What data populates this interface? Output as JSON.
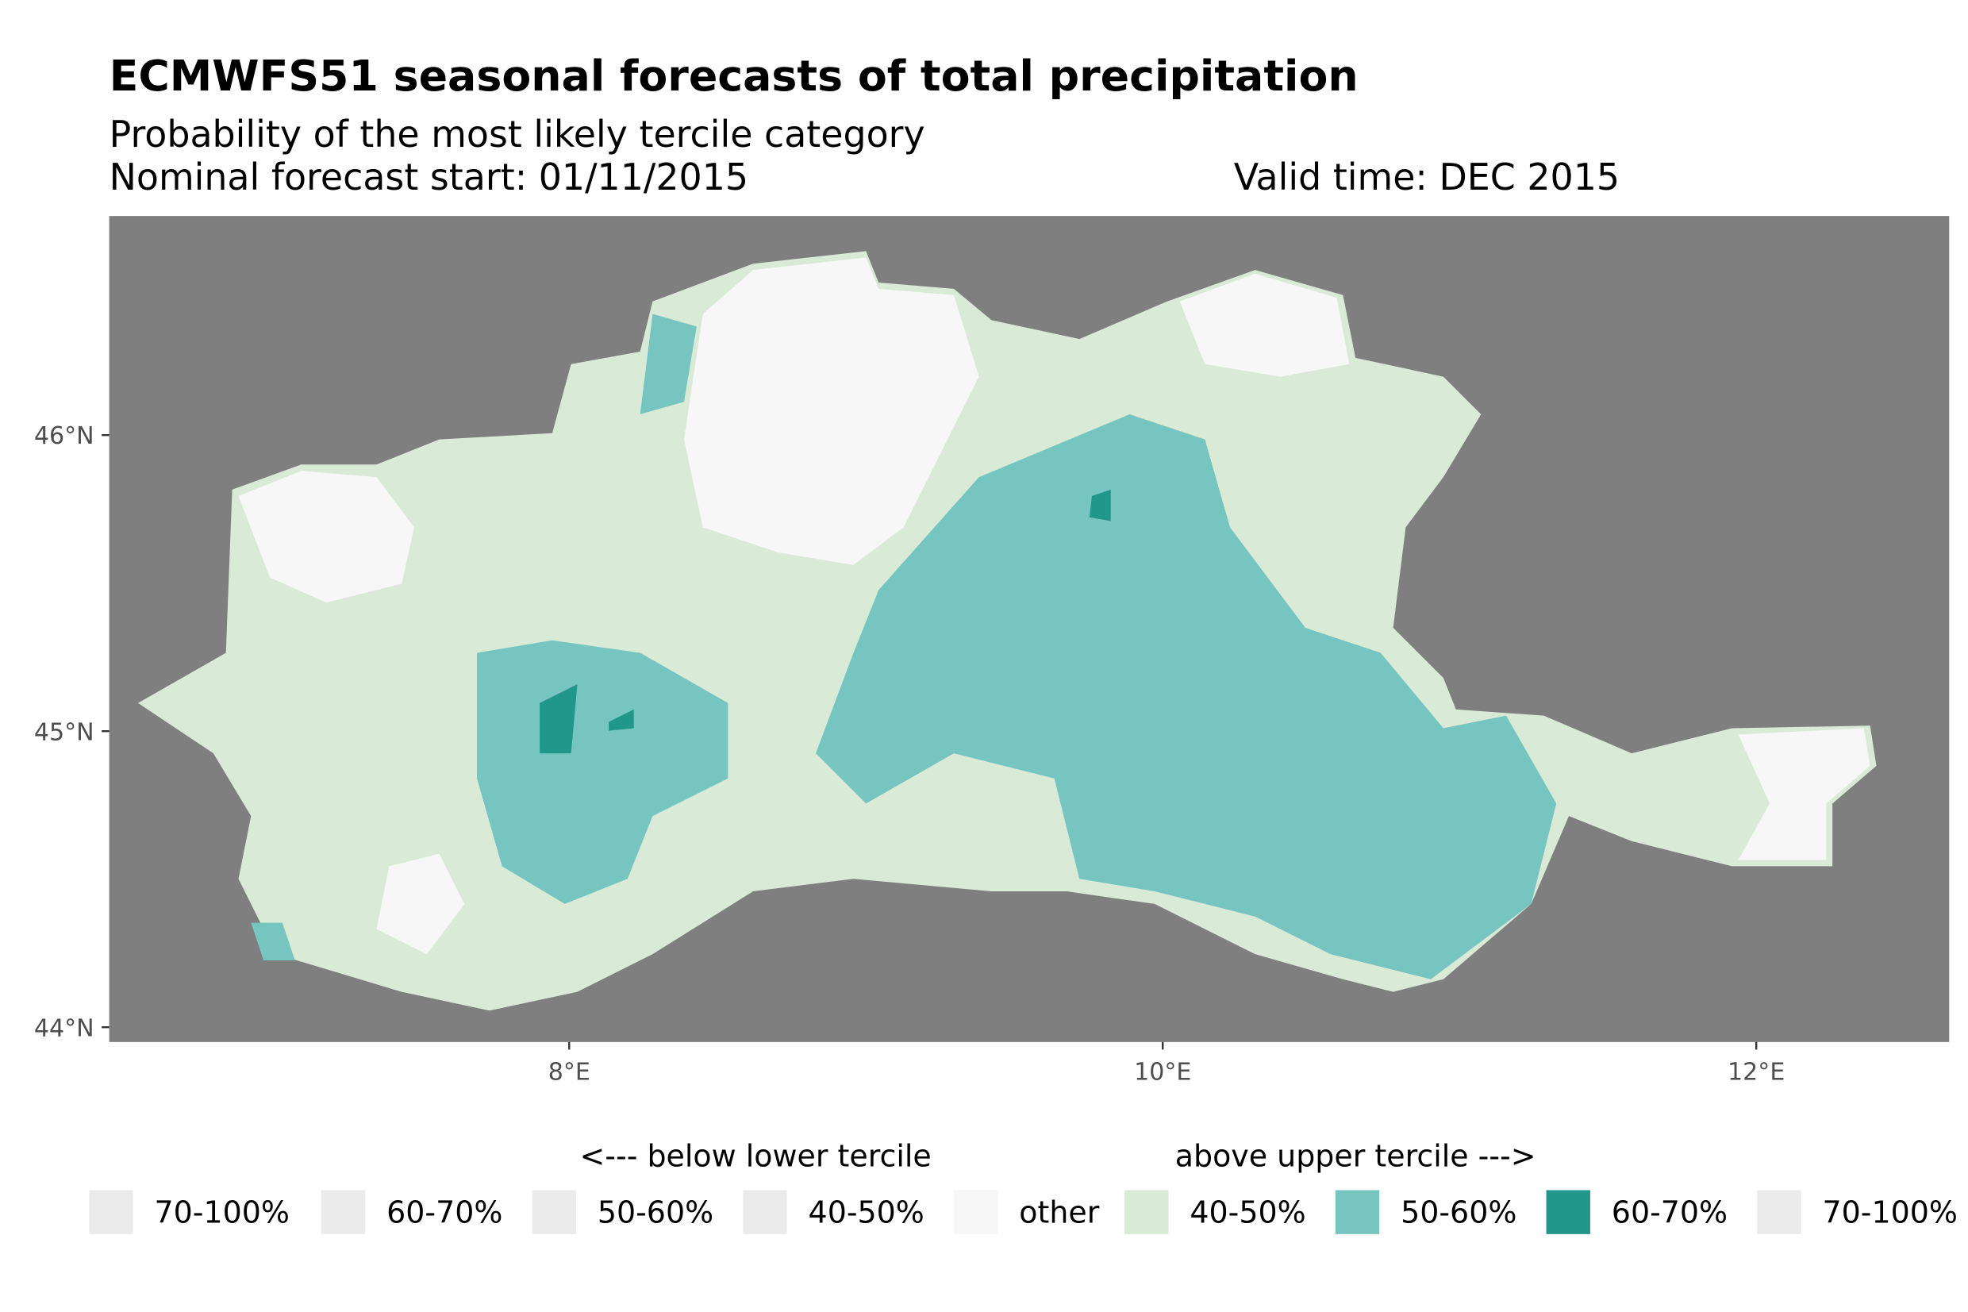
{
  "chart_data": {
    "type": "map",
    "title": "ECMWFS51 seasonal forecasts of total precipitation",
    "subtitle": "Probability of the most likely tercile category",
    "start_label": "Nominal forecast start: 01/11/2015",
    "valid_label": "Valid time: DEC 2015",
    "background": "#7f7f7f",
    "xlim": [
      6.45,
      12.65
    ],
    "ylim": [
      43.95,
      46.74
    ],
    "xticks": [
      {
        "value": 8,
        "label": "8°E"
      },
      {
        "value": 10,
        "label": "10°E"
      },
      {
        "value": 12,
        "label": "12°E"
      }
    ],
    "yticks": [
      {
        "value": 44,
        "label": "44°N"
      },
      {
        "value": 45,
        "label": "45°N"
      },
      {
        "value": 46,
        "label": "46°N"
      }
    ],
    "legend": {
      "below_title": "<--- below lower tercile",
      "above_title": "above upper tercile --->",
      "items": [
        {
          "label": "70-100%",
          "color": "#ebebeb"
        },
        {
          "label": "60-70%",
          "color": "#ebebeb"
        },
        {
          "label": "50-60%",
          "color": "#ebebeb"
        },
        {
          "label": "40-50%",
          "color": "#ebebeb"
        },
        {
          "label": "other",
          "color": "#f7f7f7"
        },
        {
          "label": "40-50%",
          "color": "#d9ead7"
        },
        {
          "label": "50-60%",
          "color": "#76c5c1"
        },
        {
          "label": "60-70%",
          "color": "#21978b"
        },
        {
          "label": "70-100%",
          "color": "#ebebeb"
        }
      ]
    }
  }
}
